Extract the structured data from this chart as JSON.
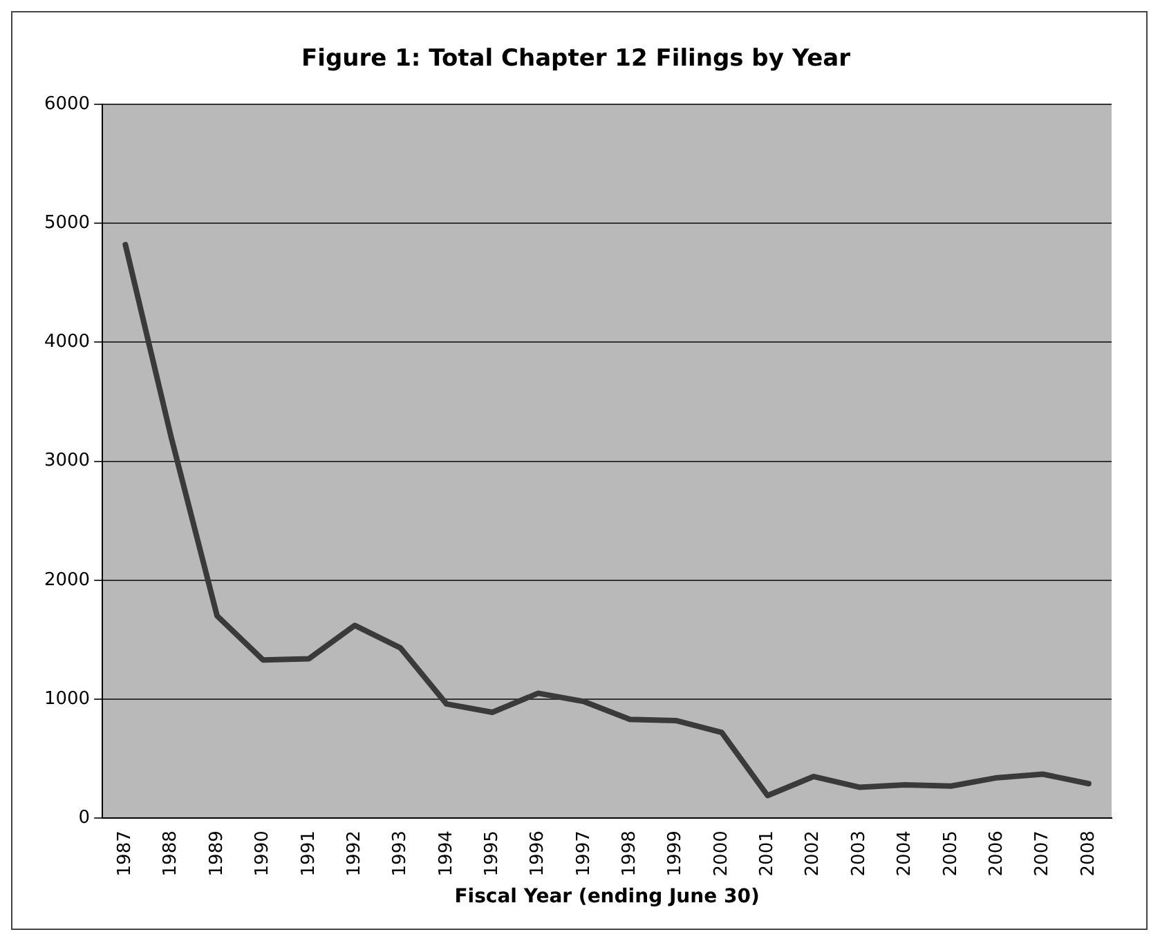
{
  "chart_data": {
    "type": "line",
    "title": "Figure 1: Total Chapter 12 Filings by Year",
    "xlabel": "Fiscal Year (ending June 30)",
    "categories": [
      "1987",
      "1988",
      "1989",
      "1990",
      "1991",
      "1992",
      "1993",
      "1994",
      "1995",
      "1996",
      "1997",
      "1998",
      "1999",
      "2000",
      "2001",
      "2002",
      "2003",
      "2004",
      "2005",
      "2006",
      "2007",
      "2008"
    ],
    "series": [
      {
        "color": "#3a3a3a",
        "values": [
          4820,
          3200,
          1700,
          1330,
          1340,
          1620,
          1430,
          960,
          890,
          1050,
          980,
          830,
          820,
          720,
          190,
          350,
          260,
          280,
          270,
          340,
          370,
          290
        ]
      }
    ],
    "ylim": [
      0,
      6000
    ],
    "yticks": [
      0,
      1000,
      2000,
      3000,
      4000,
      5000,
      6000
    ],
    "grid": "y",
    "legend": false,
    "marker": "none",
    "line_style": "solid"
  }
}
